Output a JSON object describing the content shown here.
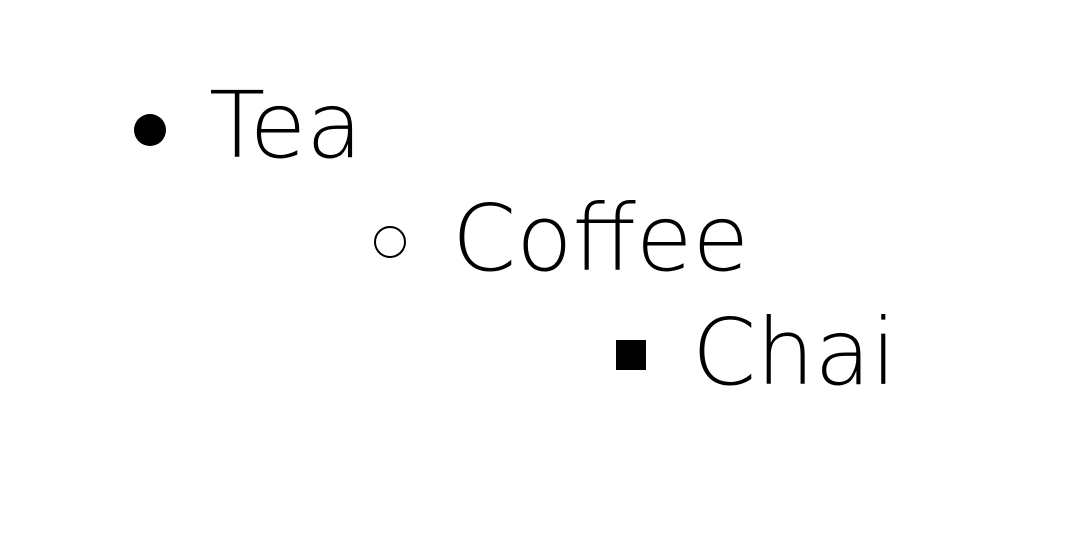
{
  "list": {
    "items": [
      {
        "label": "Tea",
        "level": 1,
        "marker": "disc"
      },
      {
        "label": "Coffee",
        "level": 2,
        "marker": "circle"
      },
      {
        "label": "Chai",
        "level": 3,
        "marker": "square"
      }
    ]
  }
}
